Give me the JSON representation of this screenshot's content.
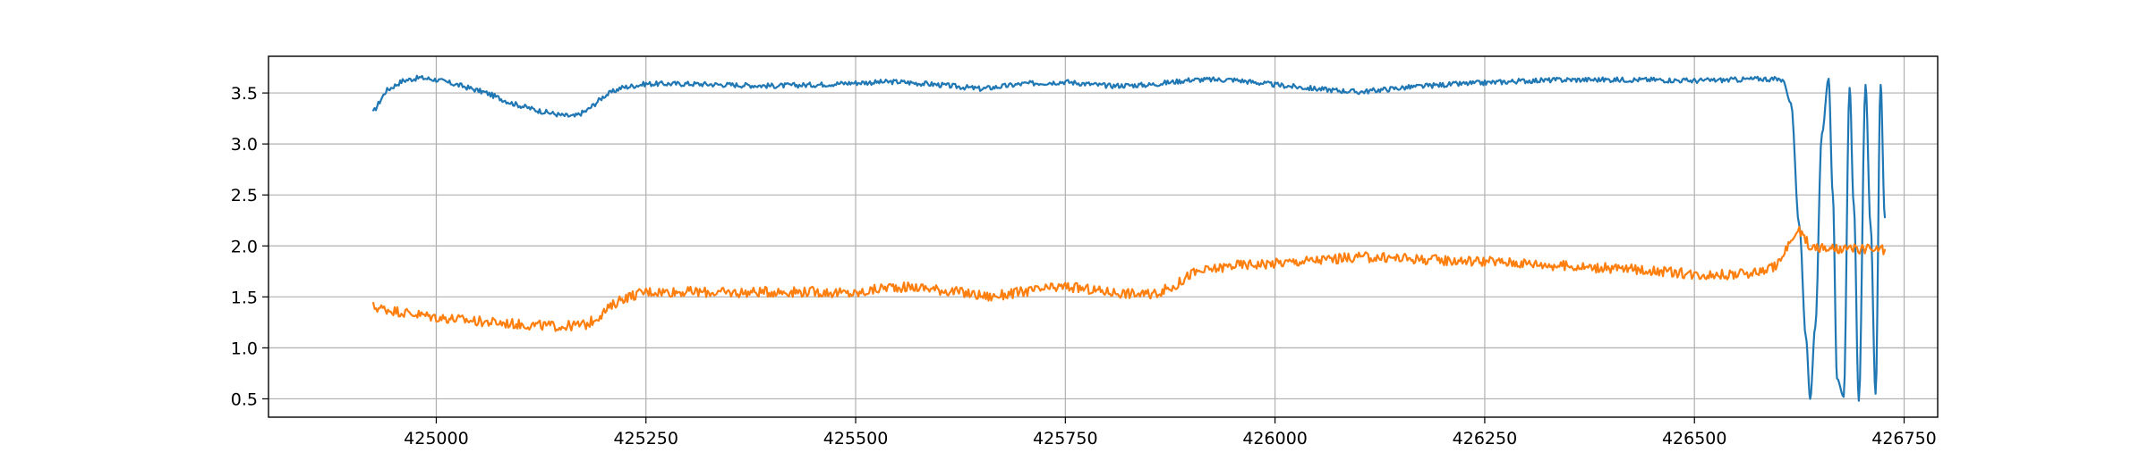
{
  "chart_data": {
    "type": "line",
    "title": "",
    "xlabel": "",
    "ylabel": "",
    "grid": true,
    "xlim": [
      424800,
      426790
    ],
    "ylim": [
      0.32,
      3.86
    ],
    "x_ticks": [
      425000,
      425250,
      425500,
      425750,
      426000,
      426250,
      426500,
      426750
    ],
    "x_tick_labels": [
      "425000",
      "425250",
      "425500",
      "425750",
      "426000",
      "426250",
      "426500",
      "426750"
    ],
    "y_ticks": [
      0.5,
      1.0,
      1.5,
      2.0,
      2.5,
      3.0,
      3.5
    ],
    "y_tick_labels": [
      "0.5",
      "1.0",
      "1.5",
      "2.0",
      "2.5",
      "3.0",
      "3.5"
    ],
    "series": [
      {
        "color": "#1f77b4",
        "x": [
          424925,
          424940,
          424960,
          424980,
          425000,
          425030,
          425060,
          425090,
          425120,
          425150,
          425165,
          425180,
          425200,
          425220,
          425250,
          425300,
          425350,
          425400,
          425450,
          425500,
          425550,
          425600,
          425650,
          425700,
          425750,
          425800,
          425850,
          425900,
          425950,
          426000,
          426050,
          426100,
          426150,
          426200,
          426250,
          426300,
          426350,
          426400,
          426450,
          426500,
          426550,
          426580,
          426605,
          426615,
          426625,
          426633,
          426638,
          426644,
          426652,
          426660,
          426665,
          426670,
          426678,
          426685,
          426690,
          426696,
          426704,
          426710,
          426716,
          426722,
          426727
        ],
        "y": [
          3.31,
          3.52,
          3.62,
          3.65,
          3.63,
          3.57,
          3.5,
          3.4,
          3.33,
          3.28,
          3.27,
          3.33,
          3.47,
          3.55,
          3.59,
          3.59,
          3.58,
          3.57,
          3.58,
          3.6,
          3.61,
          3.58,
          3.54,
          3.59,
          3.61,
          3.57,
          3.58,
          3.63,
          3.63,
          3.58,
          3.54,
          3.51,
          3.55,
          3.58,
          3.6,
          3.62,
          3.63,
          3.63,
          3.63,
          3.62,
          3.63,
          3.64,
          3.63,
          3.4,
          2.2,
          1.1,
          0.5,
          1.2,
          3.1,
          3.64,
          2.5,
          0.7,
          0.52,
          3.55,
          2.4,
          0.48,
          3.58,
          2.2,
          0.55,
          3.58,
          2.28
        ]
      },
      {
        "color": "#ff7f0e",
        "x": [
          424925,
          424960,
          425000,
          425050,
          425100,
          425150,
          425180,
          425200,
          425220,
          425250,
          425300,
          425350,
          425400,
          425450,
          425500,
          425540,
          425580,
          425620,
          425660,
          425700,
          425750,
          425800,
          425850,
          425880,
          425900,
          425950,
          426000,
          426050,
          426100,
          426150,
          426200,
          426250,
          426300,
          426350,
          426400,
          426450,
          426500,
          426550,
          426580,
          426600,
          426615,
          426625,
          426640,
          426660,
          426680,
          426700,
          426727
        ],
        "y": [
          1.4,
          1.35,
          1.3,
          1.26,
          1.23,
          1.21,
          1.23,
          1.35,
          1.48,
          1.55,
          1.55,
          1.54,
          1.55,
          1.55,
          1.53,
          1.6,
          1.59,
          1.55,
          1.5,
          1.55,
          1.6,
          1.55,
          1.52,
          1.6,
          1.73,
          1.81,
          1.83,
          1.86,
          1.89,
          1.88,
          1.86,
          1.85,
          1.83,
          1.8,
          1.78,
          1.76,
          1.72,
          1.72,
          1.75,
          1.82,
          2.05,
          2.15,
          1.98,
          1.97,
          1.96,
          1.97,
          1.96
        ]
      }
    ]
  }
}
